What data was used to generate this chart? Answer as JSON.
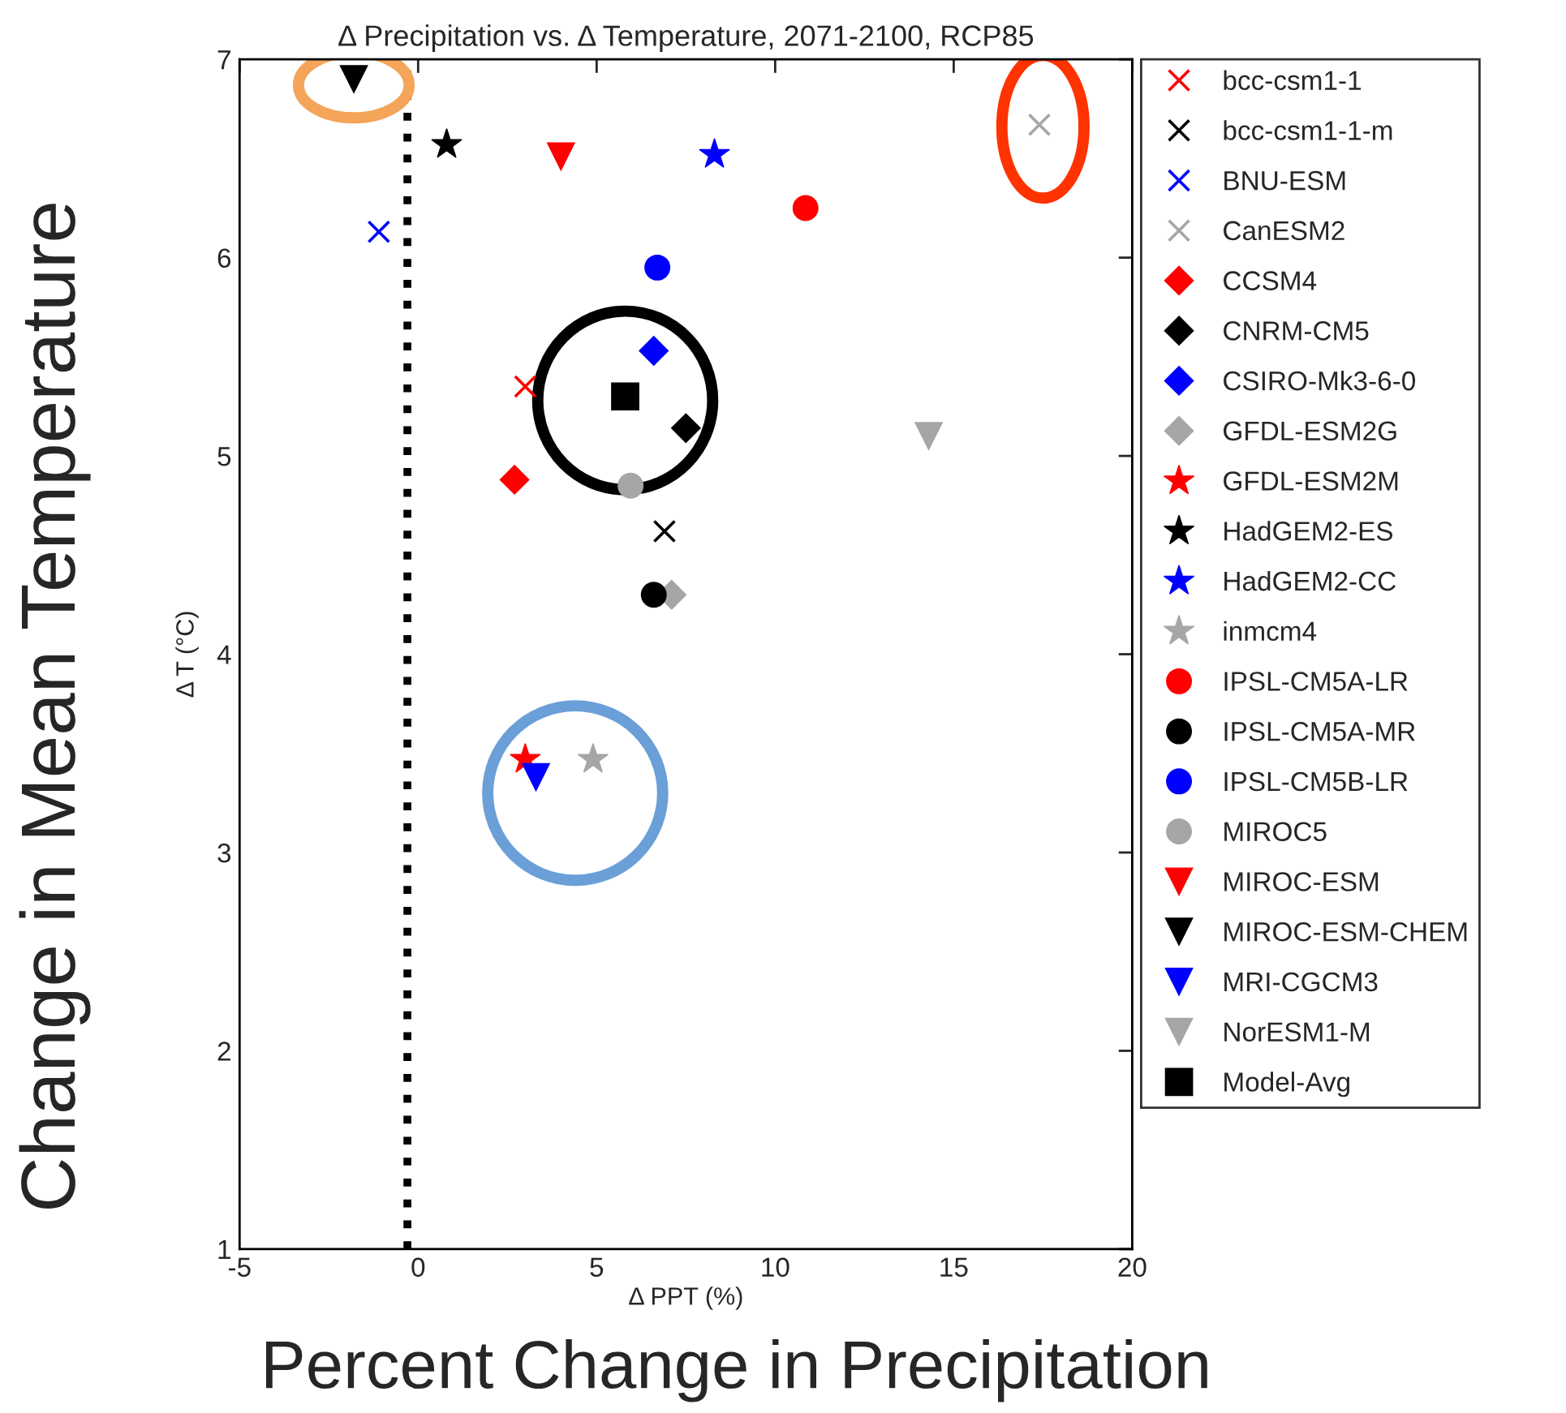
{
  "chart_data": {
    "type": "scatter",
    "title": "Δ Precipitation vs. Δ Temperature, 2071-2100, RCP85",
    "xlabel": "Δ PPT (%)",
    "ylabel": "Δ T (°C)",
    "annotations": [
      "Change in Mean Temperature",
      "Percent Change in Precipitation"
    ],
    "xlim": [
      -5,
      20
    ],
    "xticks": [
      -5,
      0,
      5,
      10,
      15,
      20
    ],
    "ylim": [
      1,
      7
    ],
    "yticks": [
      1,
      2,
      3,
      4,
      5,
      6,
      7
    ],
    "grid": false,
    "legend": "right",
    "ref_lines": [
      {
        "axis": "x",
        "value": -0.3,
        "color": "#000000",
        "line_style": "dotted"
      }
    ],
    "series": [
      {
        "name": "bcc-csm1-1",
        "color": "#ff0000",
        "marker": "cross",
        "x": [
          3.0
        ],
        "values": [
          5.35
        ]
      },
      {
        "name": "bcc-csm1-1-m",
        "color": "#000000",
        "marker": "cross",
        "x": [
          6.9
        ],
        "values": [
          4.62
        ]
      },
      {
        "name": "BNU-ESM",
        "color": "#0000ff",
        "marker": "cross",
        "x": [
          -1.1
        ],
        "values": [
          6.13
        ]
      },
      {
        "name": "CanESM2",
        "color": "#a6a6a6",
        "marker": "cross",
        "x": [
          17.4
        ],
        "values": [
          6.67
        ]
      },
      {
        "name": "CCSM4",
        "color": "#ff0000",
        "marker": "diamond",
        "x": [
          2.7
        ],
        "values": [
          4.88
        ]
      },
      {
        "name": "CNRM-CM5",
        "color": "#000000",
        "marker": "diamond",
        "x": [
          7.5
        ],
        "values": [
          5.14
        ]
      },
      {
        "name": "CSIRO-Mk3-6-0",
        "color": "#0000ff",
        "marker": "diamond",
        "x": [
          6.6
        ],
        "values": [
          5.53
        ]
      },
      {
        "name": "GFDL-ESM2G",
        "color": "#a6a6a6",
        "marker": "diamond",
        "x": [
          7.1
        ],
        "values": [
          4.3
        ]
      },
      {
        "name": "GFDL-ESM2M",
        "color": "#ff0000",
        "marker": "star",
        "x": [
          3.0
        ],
        "values": [
          3.47
        ]
      },
      {
        "name": "HadGEM2-ES",
        "color": "#000000",
        "marker": "star",
        "x": [
          0.8
        ],
        "values": [
          6.57
        ]
      },
      {
        "name": "HadGEM2-CC",
        "color": "#0000ff",
        "marker": "star",
        "x": [
          8.3
        ],
        "values": [
          6.52
        ]
      },
      {
        "name": "inmcm4",
        "color": "#a6a6a6",
        "marker": "star",
        "x": [
          4.9
        ],
        "values": [
          3.47
        ]
      },
      {
        "name": "IPSL-CM5A-LR",
        "color": "#ff0000",
        "marker": "circle",
        "x": [
          10.85
        ],
        "values": [
          6.25
        ]
      },
      {
        "name": "IPSL-CM5A-MR",
        "color": "#000000",
        "marker": "circle",
        "x": [
          6.6
        ],
        "values": [
          4.3
        ]
      },
      {
        "name": "IPSL-CM5B-LR",
        "color": "#0000ff",
        "marker": "circle",
        "x": [
          6.7
        ],
        "values": [
          5.95
        ]
      },
      {
        "name": "MIROC5",
        "color": "#a6a6a6",
        "marker": "circle",
        "x": [
          5.95
        ],
        "values": [
          4.85
        ]
      },
      {
        "name": "MIROC-ESM",
        "color": "#ff0000",
        "marker": "triangle",
        "x": [
          4.0
        ],
        "values": [
          6.51
        ]
      },
      {
        "name": "MIROC-ESM-CHEM",
        "color": "#000000",
        "marker": "triangle",
        "x": [
          -1.8
        ],
        "values": [
          6.9
        ]
      },
      {
        "name": "MRI-CGCM3",
        "color": "#0000ff",
        "marker": "triangle",
        "x": [
          3.3
        ],
        "values": [
          3.38
        ]
      },
      {
        "name": "NorESM1-M",
        "color": "#a6a6a6",
        "marker": "triangle",
        "x": [
          14.3
        ],
        "values": [
          5.1
        ]
      },
      {
        "name": "Model-Avg",
        "color": "#000000",
        "marker": "square",
        "x": [
          5.8
        ],
        "values": [
          5.3
        ]
      }
    ]
  }
}
